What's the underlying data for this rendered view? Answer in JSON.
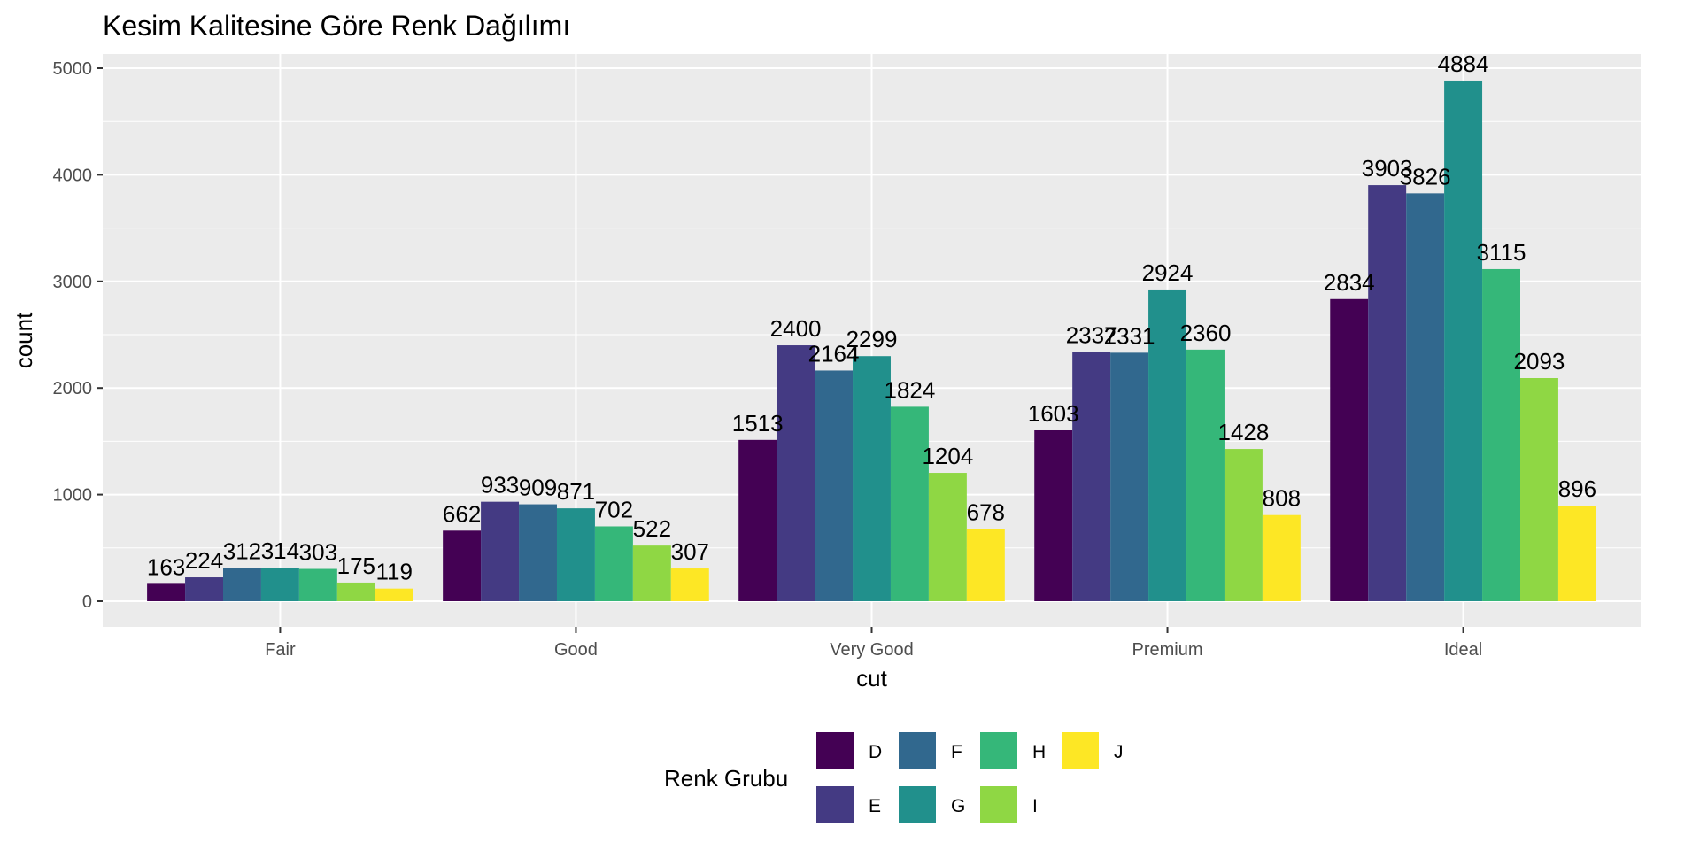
{
  "chart_data": {
    "type": "bar",
    "title": "Kesim Kalitesine Göre Renk Dağılımı",
    "xlabel": "cut",
    "ylabel": "count",
    "categories": [
      "Fair",
      "Good",
      "Very Good",
      "Premium",
      "Ideal"
    ],
    "ylim": [
      0,
      5000
    ],
    "yticks": [
      0,
      1000,
      2000,
      3000,
      4000,
      5000
    ],
    "grid": true,
    "legend_title": "Renk Grubu",
    "legend_position": "bottom",
    "series": [
      {
        "name": "D",
        "color": "#440154",
        "values": [
          163,
          662,
          1513,
          1603,
          2834
        ]
      },
      {
        "name": "E",
        "color": "#443A83",
        "values": [
          224,
          933,
          2400,
          2337,
          3903
        ]
      },
      {
        "name": "F",
        "color": "#31688E",
        "values": [
          312,
          909,
          2164,
          2331,
          3826
        ]
      },
      {
        "name": "G",
        "color": "#21908C",
        "values": [
          314,
          871,
          2299,
          2924,
          4884
        ]
      },
      {
        "name": "H",
        "color": "#35B779",
        "values": [
          303,
          702,
          1824,
          2360,
          3115
        ]
      },
      {
        "name": "I",
        "color": "#8FD744",
        "values": [
          175,
          522,
          1204,
          1428,
          2093
        ]
      },
      {
        "name": "J",
        "color": "#FDE725",
        "values": [
          119,
          307,
          678,
          808,
          896
        ]
      }
    ]
  }
}
